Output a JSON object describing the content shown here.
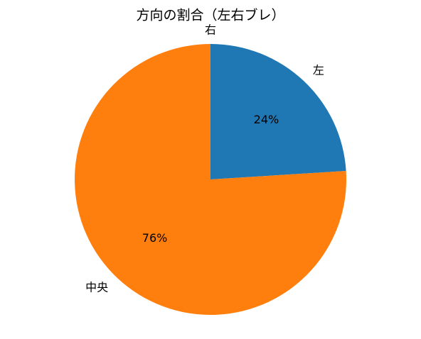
{
  "chart_data": {
    "type": "pie",
    "title": "方向の割合（左右ブレ）",
    "categories": [
      "左",
      "中央",
      "右"
    ],
    "values": [
      24,
      76,
      0
    ],
    "value_labels": [
      "24%",
      "76%",
      null
    ],
    "colors": [
      "#1f77b4",
      "#ff7f0e",
      "#2ca02c"
    ],
    "start_angle": 90,
    "direction": "clockwise"
  }
}
